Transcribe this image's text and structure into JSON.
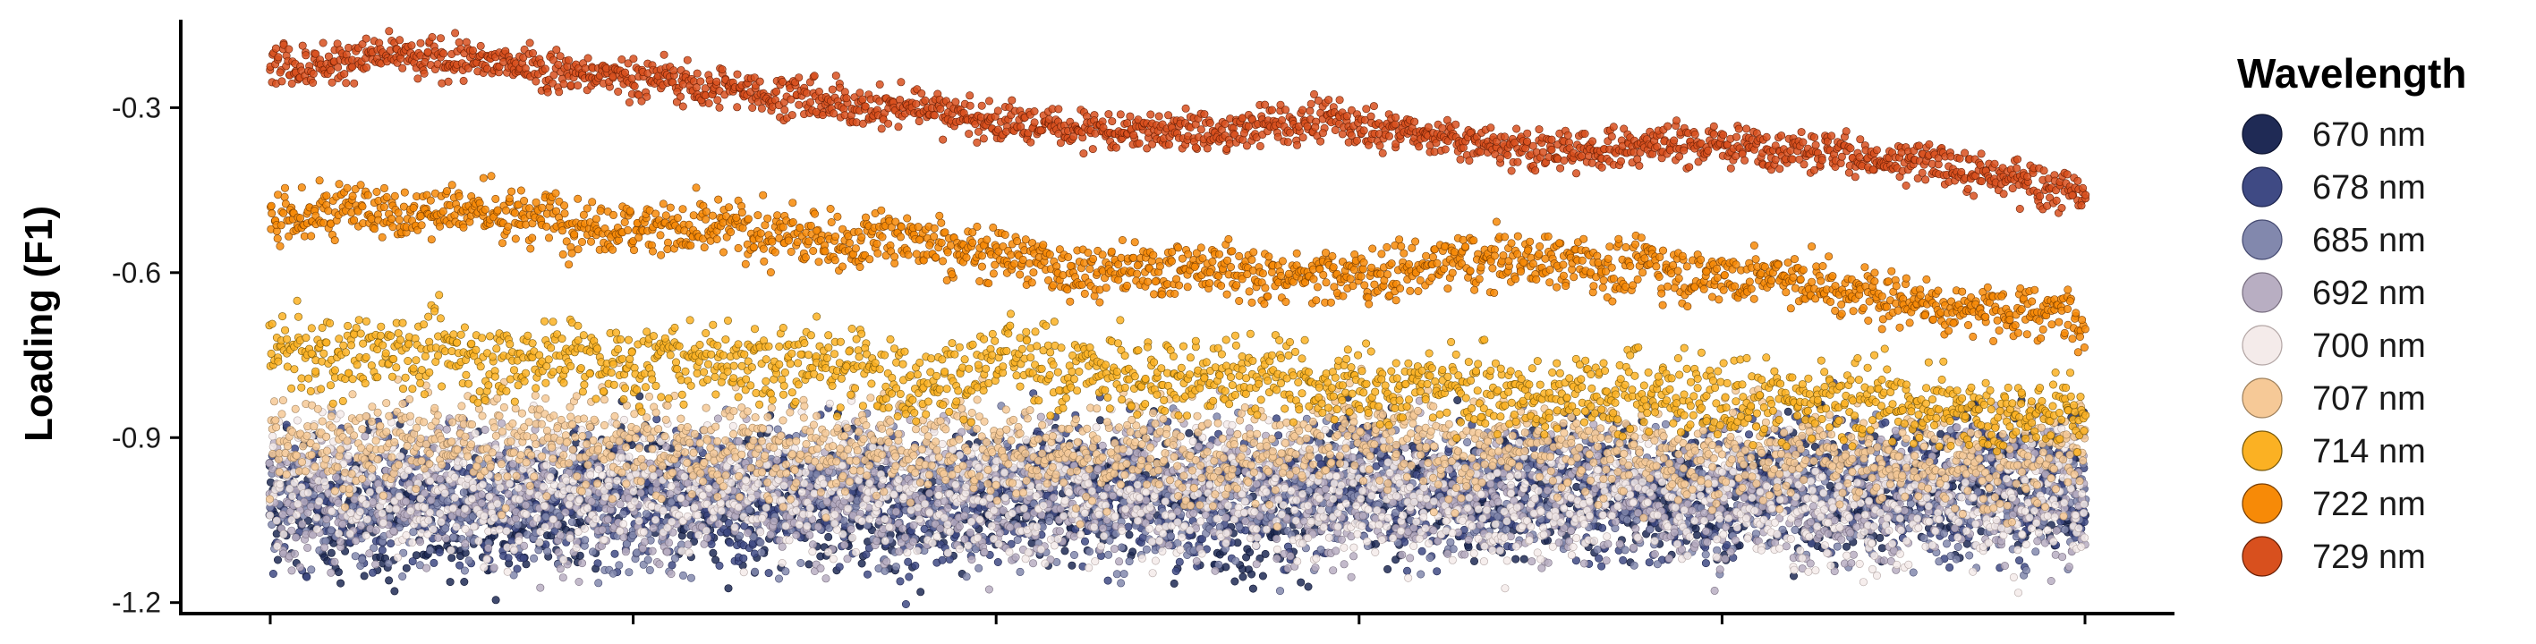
{
  "chart_data": {
    "type": "scatter",
    "title": "",
    "xlabel": "",
    "ylabel": "Loading (F1)",
    "ylim": [
      -1.22,
      -0.14
    ],
    "yticks": [
      -0.3,
      -0.6,
      -0.9,
      -1.2
    ],
    "ytick_labels": [
      "-0.3",
      "-0.6",
      "-0.9",
      "-1.2"
    ],
    "xtick_count": 6,
    "grid": false,
    "legend": {
      "title": "Wavelength",
      "placement": "right"
    },
    "series": [
      {
        "name": "670 nm",
        "color": "#1f2a55",
        "outline": "#0d1430",
        "trend": [
          [
            0,
            -1.03
          ],
          [
            1,
            -0.985
          ]
        ],
        "spread": 0.06
      },
      {
        "name": "678 nm",
        "color": "#3f4a84",
        "outline": "#1e2550",
        "trend": [
          [
            0,
            -1.02
          ],
          [
            1,
            -0.98
          ]
        ],
        "spread": 0.06
      },
      {
        "name": "685 nm",
        "color": "#8288ad",
        "outline": "#464b72",
        "trend": [
          [
            0,
            -1.01
          ],
          [
            1,
            -0.99
          ]
        ],
        "spread": 0.06
      },
      {
        "name": "692 nm",
        "color": "#b8aec2",
        "outline": "#7a7082",
        "trend": [
          [
            0,
            -1.0
          ],
          [
            1,
            -1.0
          ]
        ],
        "spread": 0.06
      },
      {
        "name": "700 nm",
        "color": "#f4ebea",
        "outline": "#b4a7a6",
        "trend": [
          [
            0,
            -0.97
          ],
          [
            1,
            -1.01
          ]
        ],
        "spread": 0.06
      },
      {
        "name": "707 nm",
        "color": "#f6c997",
        "outline": "#a0825e",
        "trend": [
          [
            0,
            -0.9
          ],
          [
            1,
            -0.935
          ]
        ],
        "spread": 0.045
      },
      {
        "name": "714 nm",
        "color": "#fbb123",
        "outline": "#7a5a0a",
        "trend": [
          [
            0,
            -0.735
          ],
          [
            0.3,
            -0.765
          ],
          [
            0.6,
            -0.8
          ],
          [
            1,
            -0.86
          ]
        ],
        "spread": 0.035
      },
      {
        "name": "722 nm",
        "color": "#f78a07",
        "outline": "#7a3f02",
        "trend": [
          [
            0,
            -0.5
          ],
          [
            0.08,
            -0.48
          ],
          [
            0.3,
            -0.54
          ],
          [
            0.34,
            -0.53
          ],
          [
            0.42,
            -0.59
          ],
          [
            0.6,
            -0.6
          ],
          [
            0.7,
            -0.58
          ],
          [
            0.84,
            -0.61
          ],
          [
            0.9,
            -0.65
          ],
          [
            1,
            -0.68
          ]
        ],
        "spread": 0.025
      },
      {
        "name": "729 nm",
        "color": "#d8501e",
        "outline": "#6a1f05",
        "trend": [
          [
            0,
            -0.22
          ],
          [
            0.08,
            -0.205
          ],
          [
            0.3,
            -0.28
          ],
          [
            0.33,
            -0.3
          ],
          [
            0.36,
            -0.295
          ],
          [
            0.4,
            -0.33
          ],
          [
            0.52,
            -0.35
          ],
          [
            0.58,
            -0.32
          ],
          [
            0.7,
            -0.38
          ],
          [
            0.76,
            -0.36
          ],
          [
            0.84,
            -0.37
          ],
          [
            0.9,
            -0.4
          ],
          [
            1,
            -0.45
          ]
        ],
        "spread": 0.018
      }
    ]
  }
}
